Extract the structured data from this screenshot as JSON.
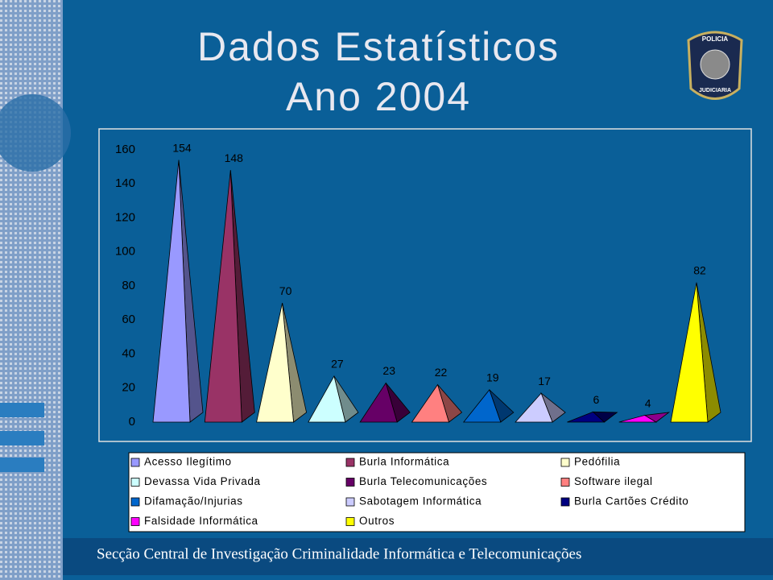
{
  "chart_data": {
    "type": "pyramid",
    "title": "Dados Estatísticos",
    "subtitle": "Ano 2004",
    "ylim": [
      0,
      160
    ],
    "yticks": [
      0,
      20,
      40,
      60,
      80,
      100,
      120,
      140,
      160
    ],
    "series": [
      {
        "name": "Acesso Ilegítimo",
        "color": "#9999ff",
        "values": [
          154
        ]
      },
      {
        "name": "Burla Informática",
        "color": "#993366",
        "values": [
          148
        ]
      },
      {
        "name": "Pedófilia",
        "color": "#ffffcc",
        "values": [
          70
        ]
      },
      {
        "name": "Devassa Vida Privada",
        "color": "#ccffff",
        "values": [
          27
        ]
      },
      {
        "name": "Burla Telecomunicações",
        "color": "#660066",
        "values": [
          23
        ]
      },
      {
        "name": "Software ilegal",
        "color": "#ff8080",
        "values": [
          22
        ]
      },
      {
        "name": "Difamação/Injurias",
        "color": "#0066cc",
        "values": [
          19
        ]
      },
      {
        "name": "Sabotagem Informática",
        "color": "#ccccff",
        "values": [
          17
        ]
      },
      {
        "name": "Burla Cartões Crédito",
        "color": "#000080",
        "values": [
          6
        ]
      },
      {
        "name": "Falsidade Informática",
        "color": "#ff00ff",
        "values": [
          4
        ]
      },
      {
        "name": "Outros",
        "color": "#ffff00",
        "values": [
          82
        ]
      }
    ]
  },
  "logo": {
    "top": "POLICIA",
    "bottom": "JUDICIARIA"
  },
  "footer": "Secção Central de Investigação Criminalidade Informática e Telecomunicações"
}
